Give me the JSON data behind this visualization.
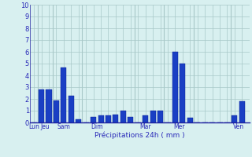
{
  "bars": [
    {
      "x": 1,
      "height": 0.0
    },
    {
      "x": 2,
      "height": 2.8
    },
    {
      "x": 3,
      "height": 2.8
    },
    {
      "x": 4,
      "height": 1.9
    },
    {
      "x": 5,
      "height": 4.7
    },
    {
      "x": 6,
      "height": 2.3
    },
    {
      "x": 7,
      "height": 0.3
    },
    {
      "x": 8,
      "height": 0.0
    },
    {
      "x": 9,
      "height": 0.5
    },
    {
      "x": 10,
      "height": 0.6
    },
    {
      "x": 11,
      "height": 0.6
    },
    {
      "x": 12,
      "height": 0.7
    },
    {
      "x": 13,
      "height": 1.0
    },
    {
      "x": 14,
      "height": 0.5
    },
    {
      "x": 15,
      "height": 0.0
    },
    {
      "x": 16,
      "height": 0.6
    },
    {
      "x": 17,
      "height": 1.0
    },
    {
      "x": 18,
      "height": 1.0
    },
    {
      "x": 19,
      "height": 0.0
    },
    {
      "x": 20,
      "height": 6.0
    },
    {
      "x": 21,
      "height": 5.0
    },
    {
      "x": 22,
      "height": 0.4
    },
    {
      "x": 23,
      "height": 0.0
    },
    {
      "x": 24,
      "height": 0.0
    },
    {
      "x": 25,
      "height": 0.0
    },
    {
      "x": 26,
      "height": 0.0
    },
    {
      "x": 27,
      "height": 0.0
    },
    {
      "x": 28,
      "height": 0.6
    },
    {
      "x": 29,
      "height": 1.8
    }
  ],
  "day_ticks": [
    1,
    2.5,
    5,
    9.5,
    16,
    20.5,
    28.5
  ],
  "day_labels": [
    "Lun",
    "Jeu",
    "Sam",
    "Dim",
    "Mar",
    "Mer",
    "Ven"
  ],
  "sep_positions": [
    1.5,
    3.5,
    7.5,
    14.5,
    18.5,
    22.5,
    27.5
  ],
  "bar_color": "#1a3fc4",
  "bar_edge_color": "#0a2090",
  "bg_color": "#d8f0f0",
  "grid_color": "#a8c8c8",
  "axis_color": "#2020a0",
  "text_color": "#2828b8",
  "xlabel": "Précipitations 24h ( mm )",
  "ylim": [
    0,
    10
  ],
  "xlim": [
    0.5,
    30
  ],
  "yticks": [
    0,
    1,
    2,
    3,
    4,
    5,
    6,
    7,
    8,
    9,
    10
  ]
}
